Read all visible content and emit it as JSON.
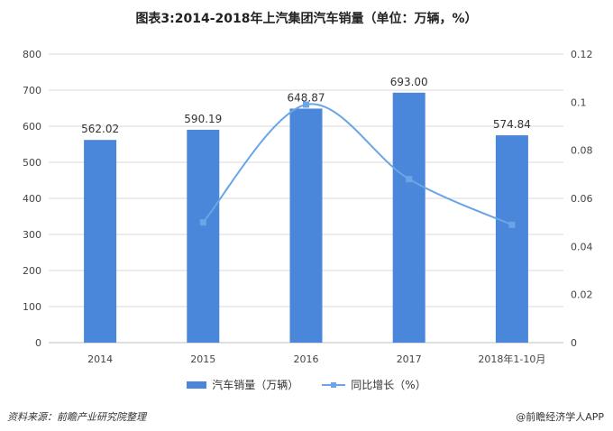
{
  "title": "图表3:2014-2018年上汽集团汽车销量（单位：万辆，%）",
  "source": "资料来源：前瞻产业研究院整理",
  "brand": "@前瞻经济学人APP",
  "colors": {
    "bar": "#4a86d9",
    "line": "#6aa5e6",
    "grid": "#d9d9d9"
  },
  "chart_data": {
    "type": "bar",
    "categories": [
      "2014",
      "2015",
      "2016",
      "2017",
      "2018年1-10月"
    ],
    "series": [
      {
        "name": "汽车销量（万辆）",
        "type": "bar",
        "axis": "left",
        "values": [
          562.02,
          590.19,
          648.87,
          693.0,
          574.84
        ],
        "labels": [
          "562.02",
          "590.19",
          "648.87",
          "693.00",
          "574.84"
        ]
      },
      {
        "name": "同比增长（%）",
        "type": "line",
        "axis": "right",
        "values": [
          null,
          0.05,
          0.099,
          0.068,
          0.049
        ]
      }
    ],
    "y_left": {
      "min": 0,
      "max": 800,
      "ticks": [
        "0",
        "100",
        "200",
        "300",
        "400",
        "500",
        "600",
        "700",
        "800"
      ]
    },
    "y_right": {
      "min": 0,
      "max": 0.12,
      "ticks": [
        "0",
        "0.02",
        "0.04",
        "0.06",
        "0.08",
        "0.1",
        "0.12"
      ]
    },
    "grid": true,
    "legend": "bottom"
  }
}
